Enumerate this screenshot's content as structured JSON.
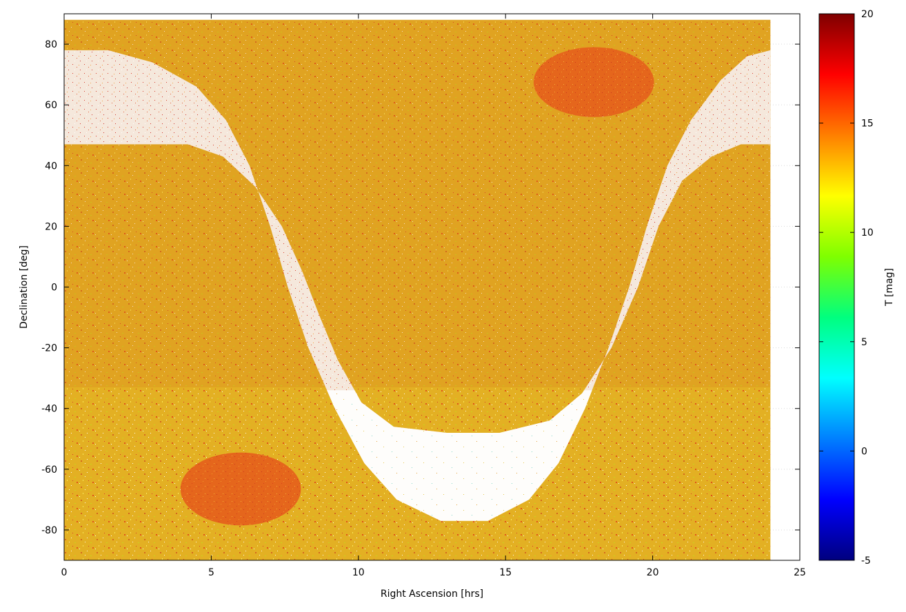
{
  "chart_data": {
    "type": "scatter",
    "title": "",
    "xlabel": "Right Ascension [hrs]",
    "ylabel": "Declination [deg]",
    "xlim": [
      0,
      25
    ],
    "ylim": [
      -90,
      90
    ],
    "xticks": [
      0,
      5,
      10,
      15,
      20,
      25
    ],
    "yticks": [
      -80,
      -60,
      -40,
      -20,
      0,
      20,
      40,
      60,
      80
    ],
    "grid": true,
    "data_extent": {
      "ra": [
        0,
        24
      ],
      "dec": [
        -90,
        88
      ]
    },
    "colorbar": {
      "label": "T [mag]",
      "range": [
        -5,
        20
      ],
      "ticks": [
        -5,
        0,
        5,
        10,
        15,
        20
      ],
      "colormap": [
        "#00007f",
        "#0000ff",
        "#007fff",
        "#00ffff",
        "#00ff7f",
        "#7fff00",
        "#ffff00",
        "#ff7f00",
        "#ff0000",
        "#7f0000"
      ]
    },
    "regions": [
      {
        "name": "background sky density",
        "typical_T": [
          11,
          14
        ],
        "color": "#e8b820"
      },
      {
        "name": "sparse ecliptic band (north)",
        "dec_range": [
          -34,
          78
        ],
        "typical_T": [
          14,
          16
        ],
        "color": "#fbe6e0"
      },
      {
        "name": "empty band (south)",
        "dec_range": [
          -78,
          -34
        ],
        "color": "#ffffff"
      },
      {
        "name": "northern continuous viewing zone",
        "center": [
          18,
          67
        ],
        "typical_T": 14.5,
        "color": "#e6631a"
      },
      {
        "name": "southern continuous viewing zone",
        "center": [
          6,
          -67
        ],
        "typical_T": 14.5,
        "color": "#e6631a"
      }
    ]
  }
}
